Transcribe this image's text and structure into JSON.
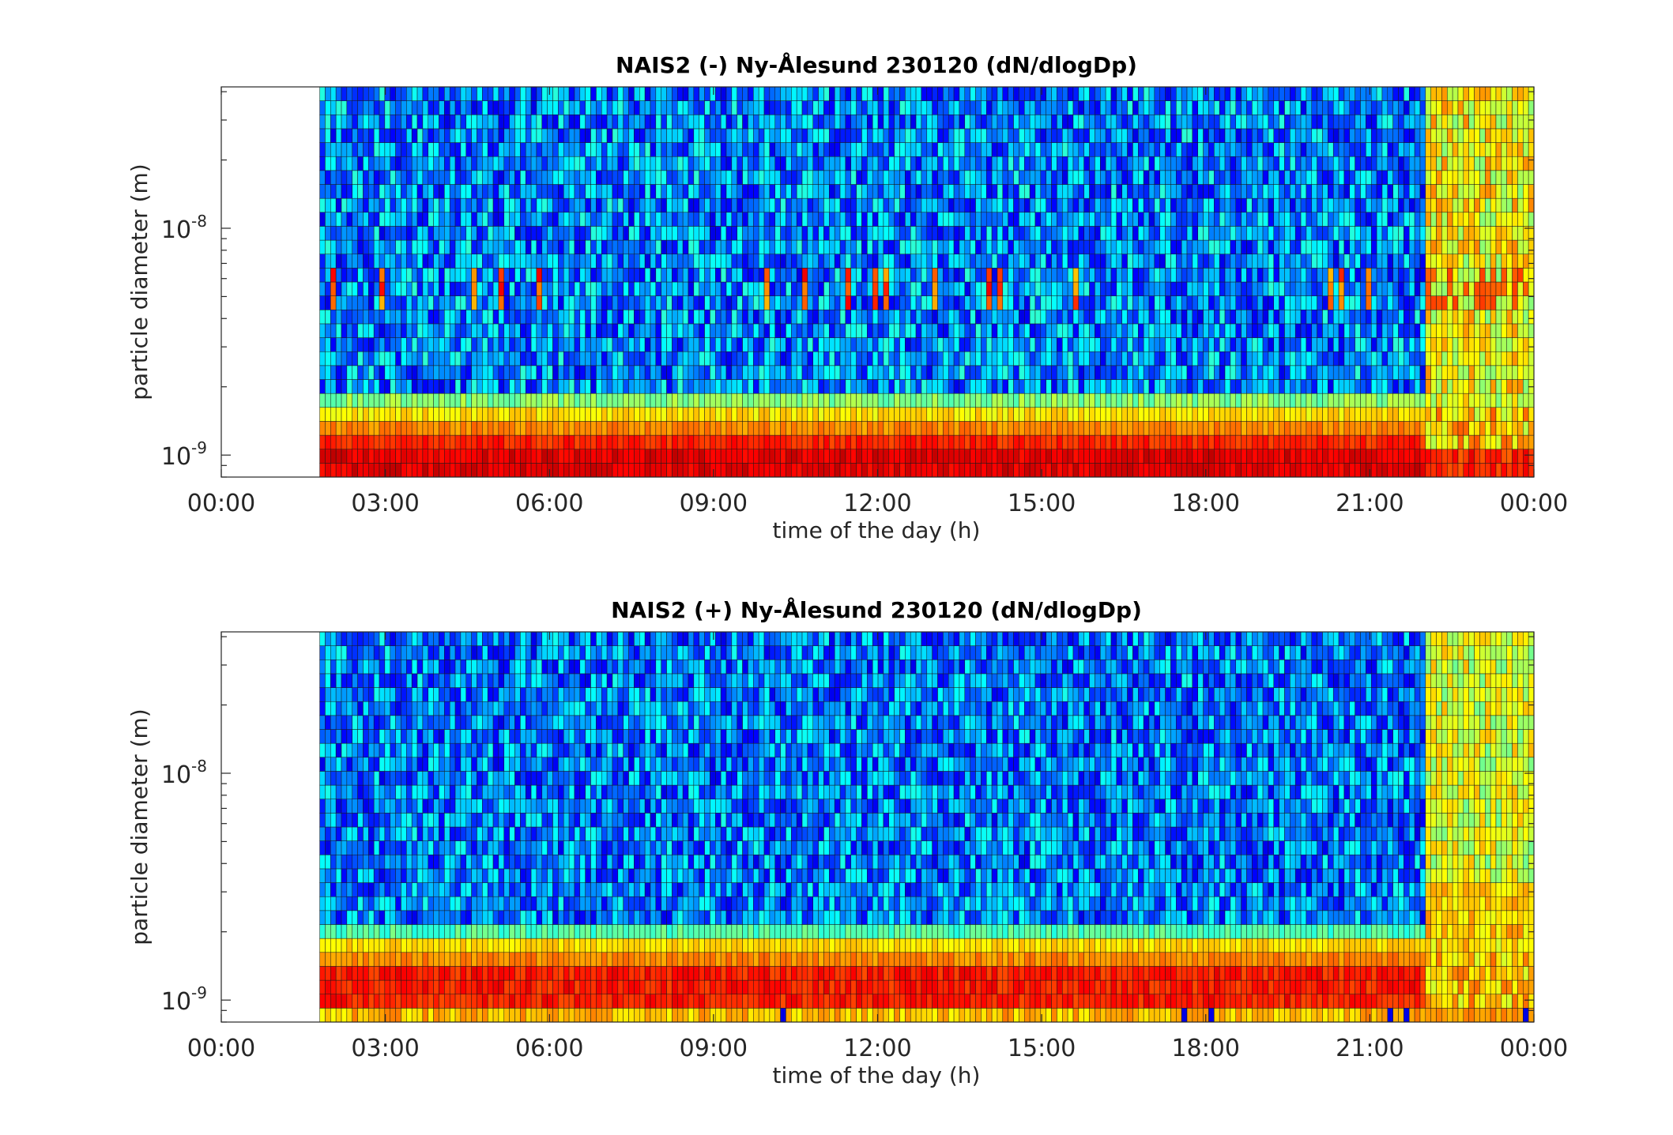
{
  "chart_data": [
    {
      "type": "heatmap",
      "title": "NAIS2 (-) Ny-Ålesund 230120 (dN/dlogDp)",
      "xlabel": "time of the day (h)",
      "ylabel": "particle diameter (m)",
      "x_ticks": [
        "00:00",
        "03:00",
        "06:00",
        "09:00",
        "12:00",
        "15:00",
        "18:00",
        "21:00",
        "00:00"
      ],
      "y_ticks": [
        {
          "base": "10",
          "exponent": "-9",
          "value": 1e-09
        },
        {
          "base": "10",
          "exponent": "-8",
          "value": 1e-08
        }
      ],
      "xlim_hours": [
        0,
        24
      ],
      "ylim": [
        8e-10,
        4.2e-08
      ],
      "y_scale": "log",
      "data_start_hour": 1.8,
      "colormap": "jet",
      "pattern": "negative"
    },
    {
      "type": "heatmap",
      "title": "NAIS2 (+) Ny-Ålesund 230120 (dN/dlogDp)",
      "xlabel": "time of the day (h)",
      "ylabel": "particle diameter (m)",
      "x_ticks": [
        "00:00",
        "03:00",
        "06:00",
        "09:00",
        "12:00",
        "15:00",
        "18:00",
        "21:00",
        "00:00"
      ],
      "y_ticks": [
        {
          "base": "10",
          "exponent": "-9",
          "value": 1e-09
        },
        {
          "base": "10",
          "exponent": "-8",
          "value": 1e-08
        }
      ],
      "xlim_hours": [
        0,
        24
      ],
      "ylim": [
        8e-10,
        4.2e-08
      ],
      "y_scale": "log",
      "data_start_hour": 1.8,
      "colormap": "jet",
      "pattern": "positive"
    }
  ]
}
